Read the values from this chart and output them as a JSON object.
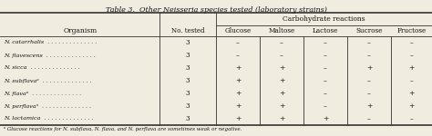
{
  "title": "Table 3.  Other Neisseria species tested (laboratory strains)",
  "col_header_1": "Organism",
  "col_header_2": "No. tested",
  "carb_header": "Carbohydrate reactions",
  "sub_headers": [
    "Glucose",
    "Maltose",
    "Lactose",
    "Sucrose",
    "Fructose"
  ],
  "organisms": [
    "N. catarrhalis  . . . . . . . . . . . . . .",
    "N. flavescens  . . . . . . . . . . . . . .",
    "N. sicca  . . . . . . . . . . . . . .",
    "N. subflavaᵃ  . . . . . . . . . . . . . .",
    "N. flavaᵃ  . . . . . . . . . . . . . .",
    "N. perflavaᵃ  . . . . . . . . . . . . . .",
    "N. lactamica  . . . . . . . . . . . . . ."
  ],
  "no_tested": [
    "3",
    "3",
    "3",
    "3",
    "3",
    "3",
    "3"
  ],
  "reactions": [
    [
      "–",
      "–",
      "–",
      "–",
      "–"
    ],
    [
      "–",
      "–",
      "–",
      "–",
      "–"
    ],
    [
      "+",
      "+",
      "–",
      "+",
      "+"
    ],
    [
      "+",
      "+",
      "–",
      "–",
      "–"
    ],
    [
      "+",
      "+",
      "–",
      "–",
      "+"
    ],
    [
      "+",
      "+",
      "–",
      "+",
      "+"
    ],
    [
      "+",
      "+",
      "+",
      "–",
      "–"
    ]
  ],
  "footnote": "ᵃ Glucose reactions for N. subflava, N. flava, and N. perflava are sometimes weak or negative.",
  "bg_color": "#f0ece0",
  "text_color": "#111111",
  "line_color": "#333333"
}
